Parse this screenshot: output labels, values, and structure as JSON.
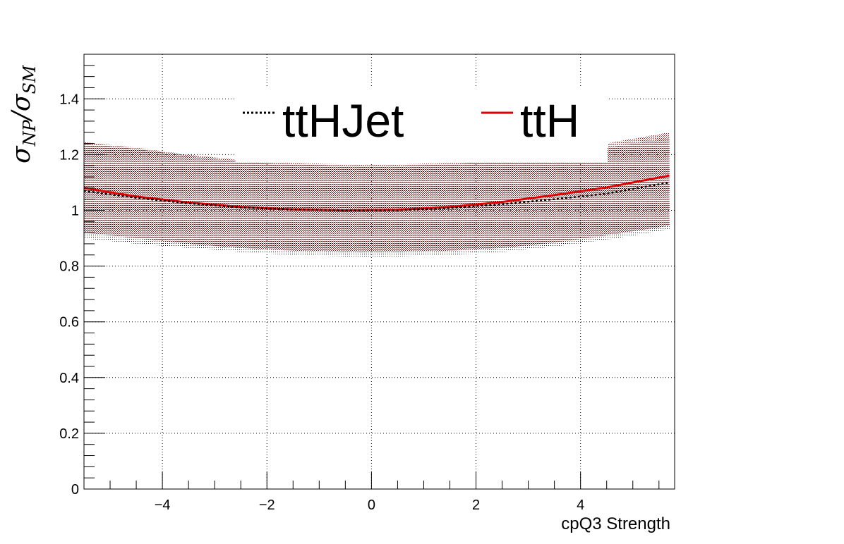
{
  "chart_data": {
    "type": "line",
    "xlabel": "cpQ3 Strength",
    "ylabel": {
      "sym": "σ",
      "sub1": "NP",
      "slash": "/",
      "sub2": "SM"
    },
    "xlim": [
      -5.5,
      5.8
    ],
    "ylim": [
      0,
      1.56
    ],
    "x_ticks": [
      -4,
      -2,
      0,
      2,
      4
    ],
    "x_tick_labels": [
      "−4",
      "−2",
      "0",
      "2",
      "4"
    ],
    "y_ticks": [
      0,
      0.2,
      0.4,
      0.6,
      0.8,
      1,
      1.2,
      1.4
    ],
    "y_tick_labels": [
      "0",
      "0.2",
      "0.4",
      "0.6",
      "0.8",
      "1",
      "1.2",
      "1.4"
    ],
    "grid": true,
    "legend_position": "top-center",
    "series": [
      {
        "name": "ttHJet",
        "color": "#000000",
        "style": "dotted",
        "x": [
          -5.5,
          -4.5,
          -3.5,
          -2.5,
          -1.5,
          -0.5,
          0.5,
          1.5,
          2.5,
          3.5,
          4.5,
          5.7
        ],
        "values": [
          1.07,
          1.045,
          1.025,
          1.01,
          1.003,
          1.0,
          1.0,
          1.008,
          1.022,
          1.04,
          1.06,
          1.1
        ],
        "band_low": [
          0.9,
          0.88,
          0.865,
          0.85,
          0.84,
          0.835,
          0.835,
          0.84,
          0.85,
          0.87,
          0.895,
          0.93
        ],
        "band_high": [
          1.24,
          1.22,
          1.195,
          1.175,
          1.165,
          1.16,
          1.16,
          1.165,
          1.18,
          1.2,
          1.225,
          1.26
        ]
      },
      {
        "name": "ttH",
        "color": "#e00000",
        "style": "solid",
        "x": [
          -5.5,
          -4.5,
          -3.5,
          -2.5,
          -1.5,
          -0.5,
          0.5,
          1.5,
          2.5,
          3.5,
          4.5,
          5.7
        ],
        "values": [
          1.08,
          1.05,
          1.028,
          1.012,
          1.003,
          1.0,
          1.002,
          1.012,
          1.03,
          1.055,
          1.082,
          1.125
        ],
        "band_low": [
          0.92,
          0.9,
          0.88,
          0.865,
          0.855,
          0.85,
          0.85,
          0.855,
          0.865,
          0.885,
          0.91,
          0.945
        ],
        "band_high": [
          1.245,
          1.225,
          1.2,
          1.18,
          1.17,
          1.165,
          1.165,
          1.17,
          1.19,
          1.21,
          1.24,
          1.28
        ]
      }
    ]
  }
}
